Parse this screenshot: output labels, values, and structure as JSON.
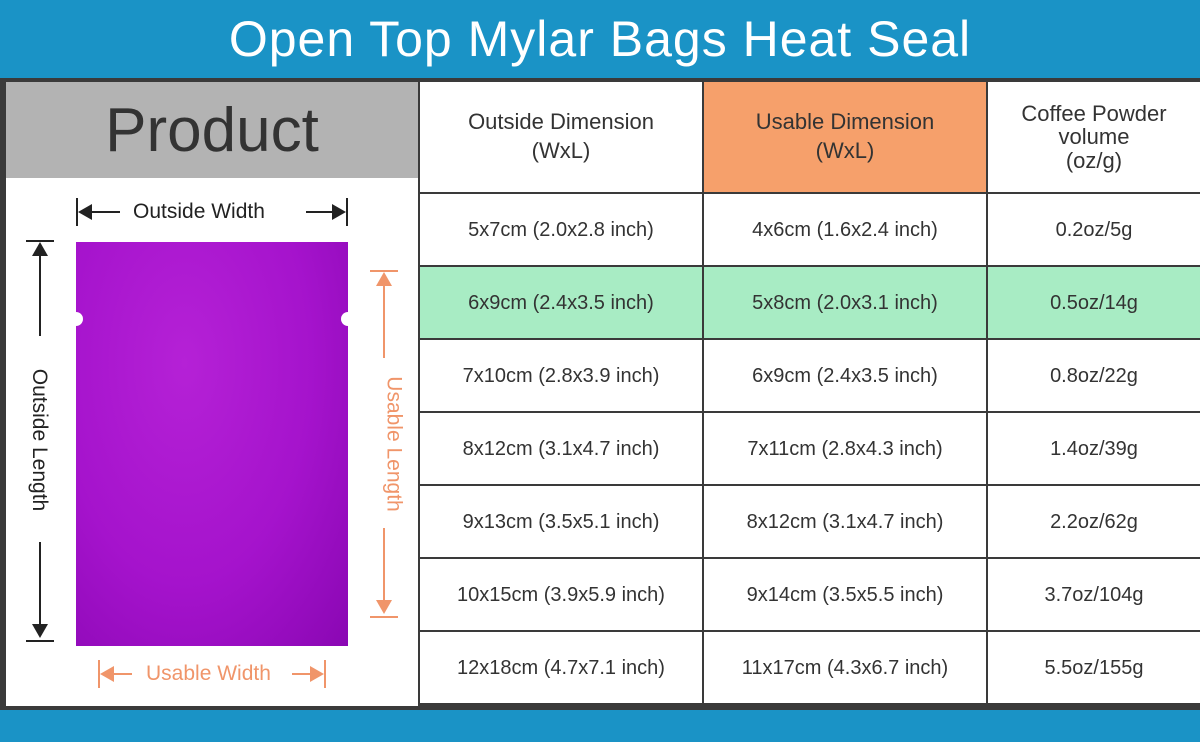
{
  "title": "Open Top Mylar Bags Heat Seal",
  "product_label": "Product",
  "diagram": {
    "outside_width": "Outside Width",
    "outside_length": "Outside Length",
    "usable_length": "Usable Length",
    "usable_width": "Usable Width",
    "bag_color": "#a513cc",
    "dark_color": "#222222",
    "orange_color": "#f0956a"
  },
  "table": {
    "headers": {
      "outside_1": "Outside Dimension",
      "outside_2": "(WxL)",
      "usable_1": "Usable Dimension",
      "usable_2": "(WxL)",
      "coffee_1": "Coffee Powder",
      "coffee_2": "volume",
      "coffee_3": "(oz/g)"
    },
    "rows": [
      {
        "outside": "5x7cm (2.0x2.8 inch)",
        "usable": "4x6cm (1.6x2.4 inch)",
        "volume": "0.2oz/5g"
      },
      {
        "outside": "6x9cm (2.4x3.5 inch)",
        "usable": "5x8cm (2.0x3.1 inch)",
        "volume": "0.5oz/14g"
      },
      {
        "outside": "7x10cm (2.8x3.9 inch)",
        "usable": "6x9cm (2.4x3.5 inch)",
        "volume": "0.8oz/22g"
      },
      {
        "outside": "8x12cm (3.1x4.7 inch)",
        "usable": "7x11cm (2.8x4.3 inch)",
        "volume": "1.4oz/39g"
      },
      {
        "outside": "9x13cm (3.5x5.1 inch)",
        "usable": "8x12cm (3.1x4.7 inch)",
        "volume": "2.2oz/62g"
      },
      {
        "outside": "10x15cm (3.9x5.9 inch)",
        "usable": "9x14cm (3.5x5.5 inch)",
        "volume": "3.7oz/104g"
      },
      {
        "outside": "12x18cm (4.7x7.1 inch)",
        "usable": "11x17cm (4.3x6.7 inch)",
        "volume": "5.5oz/155g"
      }
    ],
    "highlight_color": "#a8ecc4",
    "usable_header_color": "#f6a06b"
  }
}
